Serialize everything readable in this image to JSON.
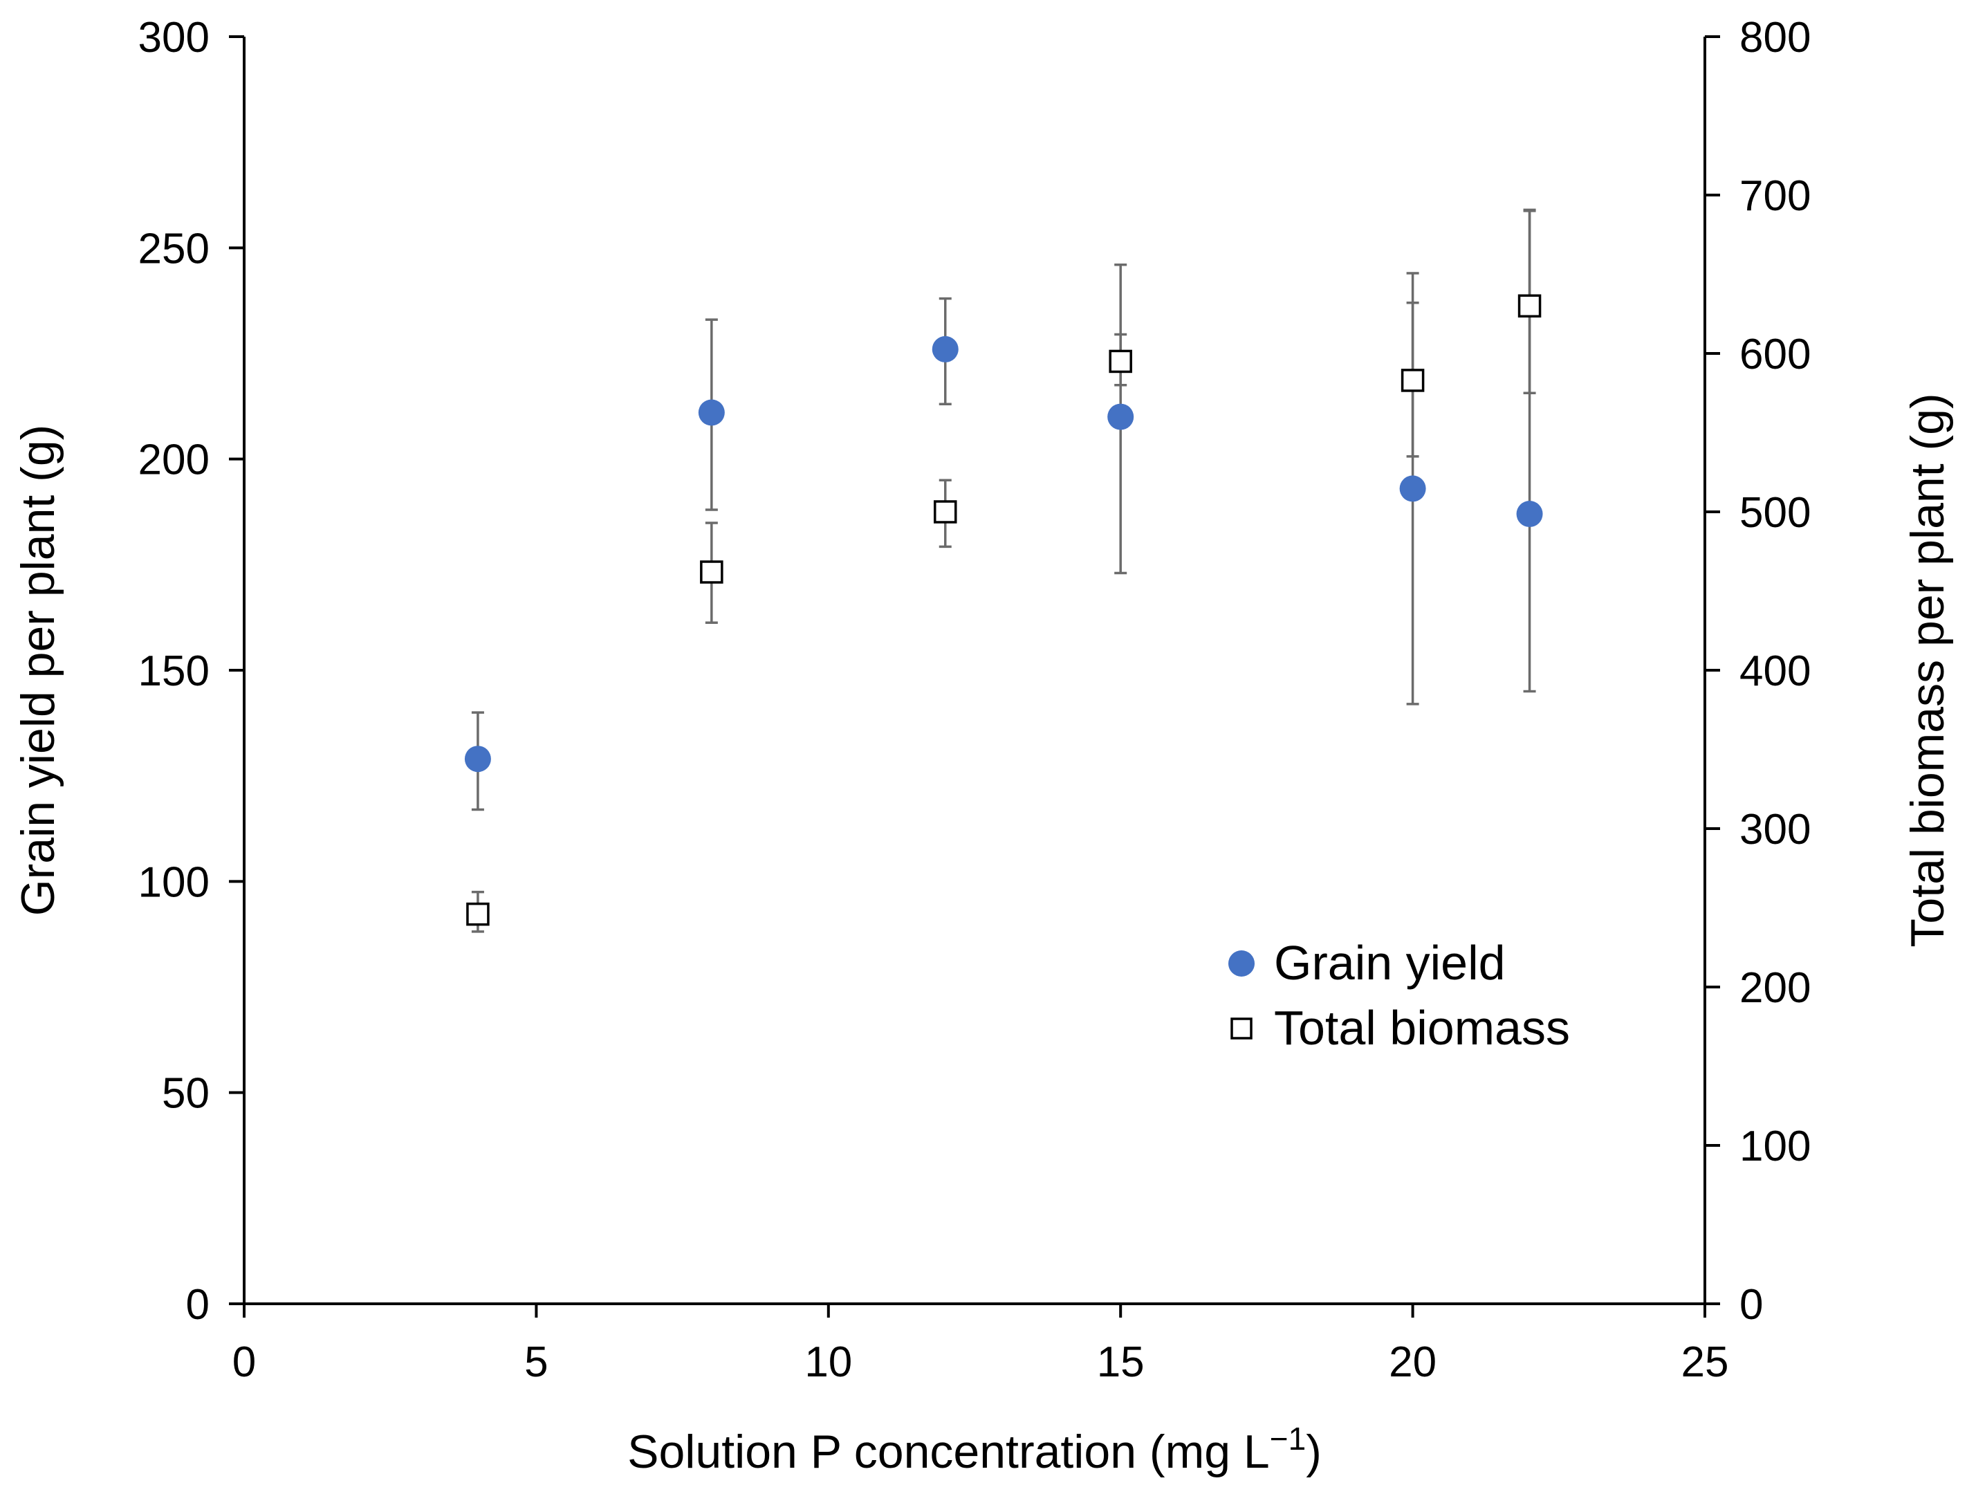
{
  "chart_data": {
    "type": "scatter",
    "title": "",
    "xlabel": "Solution P concentration (mg L",
    "xlabel_superscript": "−1",
    "xlabel_suffix": ")",
    "ylabel": "Grain yield per plant (g)",
    "y2label": "Total biomass per plant (g)",
    "xlim": [
      0,
      25
    ],
    "ylim": [
      0,
      300
    ],
    "y2lim": [
      0,
      800
    ],
    "x_ticks": [
      "0",
      "5",
      "10",
      "15",
      "20",
      "25"
    ],
    "y_ticks": [
      "0",
      "50",
      "100",
      "150",
      "200",
      "250",
      "300"
    ],
    "y2_ticks": [
      "0",
      "100",
      "200",
      "300",
      "400",
      "500",
      "600",
      "700",
      "800"
    ],
    "grid": false,
    "legend_position": "right",
    "series": [
      {
        "name": "Grain yield",
        "axis": "left",
        "marker": "filled-circle",
        "color": "#4472C4",
        "x": [
          4,
          8,
          12,
          15,
          20,
          22
        ],
        "y": [
          129,
          211,
          226,
          210,
          193,
          187
        ],
        "err_low": [
          117,
          188,
          213,
          173,
          142,
          145
        ],
        "err_high": [
          140,
          233,
          238,
          246,
          244,
          259
        ]
      },
      {
        "name": "Total biomass",
        "axis": "right",
        "marker": "open-square",
        "color": "#000000",
        "x": [
          4,
          8,
          12,
          15,
          20,
          22
        ],
        "y": [
          246,
          462,
          500,
          595,
          583,
          630
        ],
        "err_low": [
          235,
          430,
          478,
          580,
          535,
          575
        ],
        "err_high": [
          260,
          493,
          520,
          612,
          632,
          690
        ]
      }
    ]
  }
}
